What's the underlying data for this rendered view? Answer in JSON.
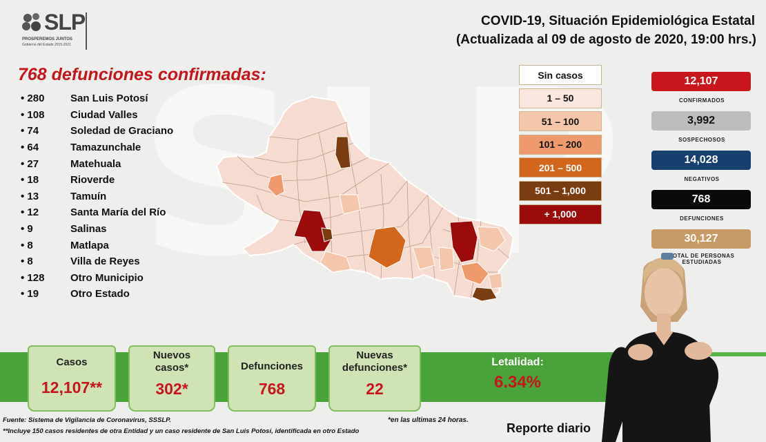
{
  "logo": {
    "text": "SLP",
    "tagline": "PROSPEREMOS JUNTOS",
    "sub": "Gobierno del Estado 2015-2021"
  },
  "header": {
    "title": "COVID-19, Situación Epidemiológica Estatal",
    "subtitle": "(Actualizada al 09 de agosto de 2020, 19:00 hrs.)"
  },
  "deaths": {
    "title": "768 defunciones confirmadas:",
    "items": [
      {
        "count": "280",
        "place": "San Luis Potosí"
      },
      {
        "count": "108",
        "place": "Ciudad Valles"
      },
      {
        "count": "74",
        "place": "Soledad de Graciano"
      },
      {
        "count": "64",
        "place": "Tamazunchale"
      },
      {
        "count": "27",
        "place": "Matehuala"
      },
      {
        "count": "18",
        "place": "Rioverde"
      },
      {
        "count": "13",
        "place": "Tamuín"
      },
      {
        "count": "12",
        "place": "Santa María del Río"
      },
      {
        "count": "9",
        "place": "Salinas"
      },
      {
        "count": "8",
        "place": "Matlapa"
      },
      {
        "count": "8",
        "place": "Villa de Reyes"
      },
      {
        "count": "128",
        "place": "Otro Municipio"
      },
      {
        "count": "19",
        "place": "Otro Estado"
      }
    ]
  },
  "legend": [
    {
      "label": "Sin casos",
      "bg": "#ffffff",
      "fg": "#111111"
    },
    {
      "label": "1 – 50",
      "bg": "#f9e6de",
      "fg": "#111111"
    },
    {
      "label": "51 – 100",
      "bg": "#f4c6ab",
      "fg": "#111111"
    },
    {
      "label": "101 – 200",
      "bg": "#ee9a6c",
      "fg": "#111111"
    },
    {
      "label": "201 – 500",
      "bg": "#d2661c",
      "fg": "#ffffff"
    },
    {
      "label": "501 – 1,000",
      "bg": "#7a3d12",
      "fg": "#ffffff"
    },
    {
      "label": "+ 1,000",
      "bg": "#9b0b0b",
      "fg": "#ffffff"
    }
  ],
  "stats": [
    {
      "value": "12,107",
      "label": "CONFIRMADOS",
      "bg": "#c8161d",
      "fg": "#ffffff"
    },
    {
      "value": "3,992",
      "label": "SOSPECHOSOS",
      "bg": "#bdbdbd",
      "fg": "#111111"
    },
    {
      "value": "14,028",
      "label": "NEGATIVOS",
      "bg": "#17406f",
      "fg": "#ffffff"
    },
    {
      "value": "768",
      "label": "DEFUNCIONES",
      "bg": "#0a0a0a",
      "fg": "#ffffff"
    },
    {
      "value": "30,127",
      "label": "TOTAL DE PERSONAS ESTUDIADAS",
      "bg": "#c89a66",
      "fg": "#ffffff"
    }
  ],
  "cards": [
    {
      "label": "Casos",
      "value": "12,107**"
    },
    {
      "label": "Nuevos casos*",
      "value": "302*"
    },
    {
      "label": "Defunciones",
      "value": "768"
    },
    {
      "label": "Nuevas defunciones*",
      "value": "22"
    }
  ],
  "lethality": {
    "label": "Letalidad:",
    "value": "6.34%"
  },
  "footnotes": {
    "source": "Fuente: Sistema de Vigilancia de Coronavirus, SSSLP.",
    "note": "**Incluye 150 casos residentes de otra Entidad y un caso residente de San Luis Potosí, identificada en otro Estado",
    "last24": "*en las ultimas 24 horas."
  },
  "report_label": "Reporte diario",
  "watermark": "SLP"
}
